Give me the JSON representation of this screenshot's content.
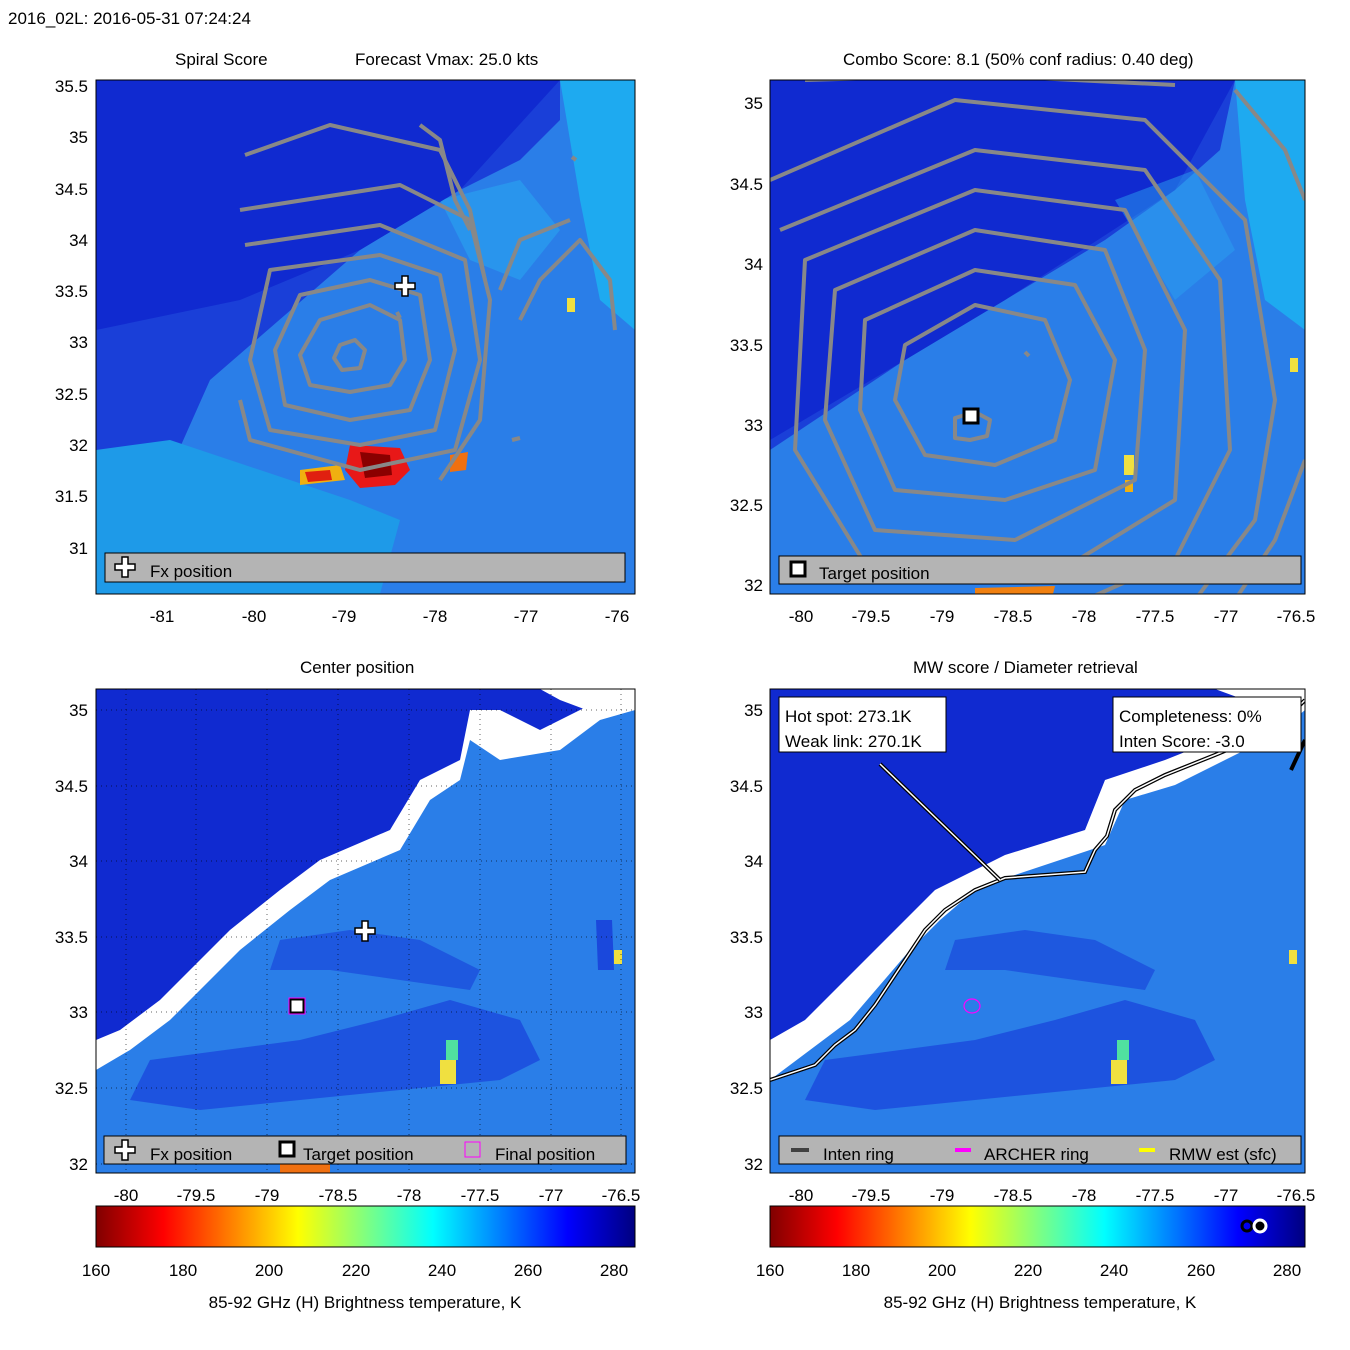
{
  "header": "2016_02L: 2016-05-31 07:24:24",
  "colors": {
    "bg_dark": "#0a1ec8",
    "bg_mid": "#1e64e6",
    "bg_light": "#1ea0f0",
    "contour": "#808080",
    "land_mask": "#ffffff",
    "legend_bg": "#b4b4b4",
    "archer_ring": "#ff00ff",
    "rmw": "#ffff00",
    "inten": "#404040"
  },
  "panels": {
    "p1": {
      "title_left": "Spiral Score",
      "title_right": "Forecast Vmax: 25.0 kts",
      "x_ticks": [
        "-81",
        "-80",
        "-79",
        "-78",
        "-77",
        "-76"
      ],
      "y_ticks": [
        "35.5",
        "35",
        "34.5",
        "34",
        "33.5",
        "33",
        "32.5",
        "32",
        "31.5",
        "31"
      ],
      "legend": [
        "Fx position"
      ]
    },
    "p2": {
      "title": "Combo Score: 8.1  (50% conf radius: 0.40 deg)",
      "x_ticks": [
        "-80",
        "-79.5",
        "-79",
        "-78.5",
        "-78",
        "-77.5",
        "-77",
        "-76.5"
      ],
      "y_ticks": [
        "35",
        "34.5",
        "34",
        "33.5",
        "33",
        "32.5",
        "32"
      ],
      "legend": [
        "Target position"
      ]
    },
    "p3": {
      "title": "Center position",
      "x_ticks": [
        "-80",
        "-79.5",
        "-79",
        "-78.5",
        "-78",
        "-77.5",
        "-77",
        "-76.5"
      ],
      "y_ticks": [
        "35",
        "34.5",
        "34",
        "33.5",
        "33",
        "32.5",
        "32"
      ],
      "legend": [
        "Fx position",
        "Target position",
        "Final position"
      ]
    },
    "p4": {
      "title": "MW score / Diameter retrieval",
      "x_ticks": [
        "-80",
        "-79.5",
        "-79",
        "-78.5",
        "-78",
        "-77.5",
        "-77",
        "-76.5"
      ],
      "y_ticks": [
        "35",
        "34.5",
        "34",
        "33.5",
        "33",
        "32.5",
        "32"
      ],
      "legend": [
        "Inten ring",
        "ARCHER ring",
        "RMW est (sfc)"
      ],
      "hot_spot": "Hot spot: 273.1K",
      "weak_link": "Weak link: 270.1K",
      "completeness": "Completeness: 0%",
      "inten_score": "Inten Score: -3.0"
    }
  },
  "colorbar": {
    "ticks": [
      "160",
      "180",
      "200",
      "220",
      "240",
      "260",
      "280"
    ],
    "label": "85-92 GHz (H) Brightness temperature, K"
  },
  "chart_data": [
    {
      "type": "heatmap",
      "title": "Spiral Score",
      "subtitle": "Forecast Vmax: 25.0 kts",
      "xlim": [
        -81.7,
        -75.8
      ],
      "ylim": [
        30.55,
        35.55
      ],
      "fx_position": {
        "lon": -78.25,
        "lat": 33.55
      }
    },
    {
      "type": "heatmap",
      "title": "Combo Score: 8.1  (50% conf radius: 0.40 deg)",
      "xlim": [
        -80.2,
        -76.4
      ],
      "ylim": [
        31.9,
        35.15
      ],
      "target_position": {
        "lon": -78.8,
        "lat": 33.05
      },
      "combo_score": 8.1,
      "conf_radius_deg": 0.4
    },
    {
      "type": "heatmap",
      "title": "Center position",
      "xlim": [
        -80.2,
        -76.4
      ],
      "ylim": [
        31.9,
        35.15
      ],
      "fx_position": {
        "lon": -78.3,
        "lat": 33.53
      },
      "target_position": {
        "lon": -78.8,
        "lat": 33.04
      },
      "final_position": {
        "lon": -78.8,
        "lat": 33.04
      }
    },
    {
      "type": "heatmap",
      "title": "MW score / Diameter retrieval",
      "xlim": [
        -80.2,
        -76.4
      ],
      "ylim": [
        31.9,
        35.15
      ],
      "hot_spot_K": 273.1,
      "weak_link_K": 270.1,
      "completeness_pct": 0,
      "inten_score": -3.0,
      "archer_ring_center": {
        "lon": -78.8,
        "lat": 33.04
      }
    }
  ]
}
